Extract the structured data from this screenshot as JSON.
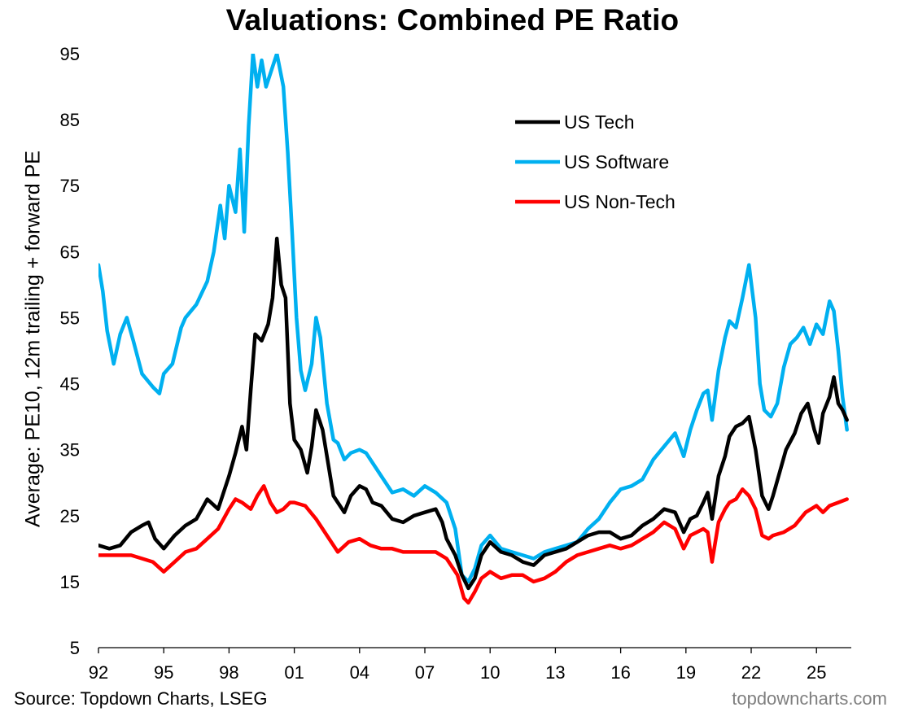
{
  "chart_data": {
    "type": "line",
    "title": "Valuations: Combined PE Ratio",
    "ylabel": "Average: PE10, 12m trailing + forward PE",
    "xlabel": "",
    "ylim": [
      5,
      95
    ],
    "xlim": [
      1992.0,
      2026.6
    ],
    "yticks": [
      95,
      85,
      75,
      65,
      55,
      45,
      35,
      25,
      15,
      5
    ],
    "xticks": [
      {
        "x": 1992,
        "label": "92"
      },
      {
        "x": 1995,
        "label": "95"
      },
      {
        "x": 1998,
        "label": "98"
      },
      {
        "x": 2001,
        "label": "01"
      },
      {
        "x": 2004,
        "label": "04"
      },
      {
        "x": 2007,
        "label": "07"
      },
      {
        "x": 2010,
        "label": "10"
      },
      {
        "x": 2013,
        "label": "13"
      },
      {
        "x": 2016,
        "label": "16"
      },
      {
        "x": 2019,
        "label": "19"
      },
      {
        "x": 2022,
        "label": "22"
      },
      {
        "x": 2025,
        "label": "25"
      }
    ],
    "legend_position": "top-right",
    "series": [
      {
        "name": "US Tech",
        "color": "#000000",
        "points": [
          [
            1992.0,
            20.5
          ],
          [
            1992.5,
            20.0
          ],
          [
            1993.0,
            20.5
          ],
          [
            1993.5,
            22.5
          ],
          [
            1994.0,
            23.5
          ],
          [
            1994.3,
            24.0
          ],
          [
            1994.6,
            21.5
          ],
          [
            1995.0,
            20.0
          ],
          [
            1995.5,
            22.0
          ],
          [
            1996.0,
            23.5
          ],
          [
            1996.5,
            24.5
          ],
          [
            1997.0,
            27.5
          ],
          [
            1997.5,
            26.0
          ],
          [
            1998.0,
            31.0
          ],
          [
            1998.3,
            34.5
          ],
          [
            1998.6,
            38.5
          ],
          [
            1998.8,
            35.0
          ],
          [
            1999.0,
            44.0
          ],
          [
            1999.2,
            52.5
          ],
          [
            1999.5,
            51.5
          ],
          [
            1999.8,
            54.0
          ],
          [
            2000.0,
            58.0
          ],
          [
            2000.2,
            67.0
          ],
          [
            2000.4,
            60.0
          ],
          [
            2000.6,
            58.0
          ],
          [
            2000.8,
            42.0
          ],
          [
            2001.0,
            36.5
          ],
          [
            2001.3,
            35.0
          ],
          [
            2001.6,
            31.5
          ],
          [
            2001.8,
            35.5
          ],
          [
            2002.0,
            41.0
          ],
          [
            2002.3,
            38.0
          ],
          [
            2002.6,
            32.0
          ],
          [
            2002.8,
            28.0
          ],
          [
            2003.0,
            27.0
          ],
          [
            2003.3,
            25.5
          ],
          [
            2003.6,
            28.0
          ],
          [
            2004.0,
            29.5
          ],
          [
            2004.3,
            29.0
          ],
          [
            2004.6,
            27.0
          ],
          [
            2005.0,
            26.5
          ],
          [
            2005.5,
            24.5
          ],
          [
            2006.0,
            24.0
          ],
          [
            2006.5,
            25.0
          ],
          [
            2007.0,
            25.5
          ],
          [
            2007.5,
            26.0
          ],
          [
            2007.8,
            24.0
          ],
          [
            2008.0,
            21.5
          ],
          [
            2008.4,
            19.0
          ],
          [
            2008.7,
            16.0
          ],
          [
            2009.0,
            14.0
          ],
          [
            2009.3,
            15.5
          ],
          [
            2009.6,
            19.0
          ],
          [
            2010.0,
            21.0
          ],
          [
            2010.5,
            19.5
          ],
          [
            2011.0,
            19.0
          ],
          [
            2011.5,
            18.0
          ],
          [
            2012.0,
            17.5
          ],
          [
            2012.5,
            19.0
          ],
          [
            2013.0,
            19.5
          ],
          [
            2013.5,
            20.0
          ],
          [
            2014.0,
            21.0
          ],
          [
            2014.5,
            22.0
          ],
          [
            2015.0,
            22.5
          ],
          [
            2015.5,
            22.5
          ],
          [
            2016.0,
            21.5
          ],
          [
            2016.5,
            22.0
          ],
          [
            2017.0,
            23.5
          ],
          [
            2017.5,
            24.5
          ],
          [
            2018.0,
            26.0
          ],
          [
            2018.5,
            25.5
          ],
          [
            2018.9,
            22.5
          ],
          [
            2019.2,
            24.5
          ],
          [
            2019.5,
            25.0
          ],
          [
            2019.8,
            27.0
          ],
          [
            2020.0,
            28.5
          ],
          [
            2020.2,
            24.5
          ],
          [
            2020.5,
            31.0
          ],
          [
            2020.8,
            34.0
          ],
          [
            2021.0,
            37.0
          ],
          [
            2021.3,
            38.5
          ],
          [
            2021.6,
            39.0
          ],
          [
            2021.9,
            40.0
          ],
          [
            2022.2,
            35.0
          ],
          [
            2022.5,
            28.0
          ],
          [
            2022.8,
            26.0
          ],
          [
            2023.0,
            28.0
          ],
          [
            2023.3,
            31.5
          ],
          [
            2023.6,
            35.0
          ],
          [
            2024.0,
            37.5
          ],
          [
            2024.3,
            40.5
          ],
          [
            2024.6,
            42.0
          ],
          [
            2024.9,
            38.0
          ],
          [
            2025.1,
            36.0
          ],
          [
            2025.3,
            40.5
          ],
          [
            2025.6,
            43.0
          ],
          [
            2025.8,
            46.0
          ],
          [
            2026.0,
            42.0
          ],
          [
            2026.2,
            41.0
          ],
          [
            2026.4,
            39.5
          ]
        ]
      },
      {
        "name": "US Software",
        "color": "#00b0f0",
        "points": [
          [
            1992.0,
            63.0
          ],
          [
            1992.2,
            59.0
          ],
          [
            1992.4,
            53.0
          ],
          [
            1992.7,
            48.0
          ],
          [
            1993.0,
            52.5
          ],
          [
            1993.3,
            55.0
          ],
          [
            1993.6,
            51.5
          ],
          [
            1994.0,
            46.5
          ],
          [
            1994.5,
            44.5
          ],
          [
            1994.8,
            43.5
          ],
          [
            1995.0,
            46.5
          ],
          [
            1995.4,
            48.0
          ],
          [
            1995.8,
            53.5
          ],
          [
            1996.0,
            55.0
          ],
          [
            1996.5,
            57.0
          ],
          [
            1997.0,
            60.5
          ],
          [
            1997.3,
            65.0
          ],
          [
            1997.6,
            72.0
          ],
          [
            1997.8,
            67.0
          ],
          [
            1998.0,
            75.0
          ],
          [
            1998.3,
            71.0
          ],
          [
            1998.5,
            80.5
          ],
          [
            1998.7,
            68.0
          ],
          [
            1998.9,
            84.0
          ],
          [
            1999.1,
            95.0
          ],
          [
            1999.3,
            90.0
          ],
          [
            1999.5,
            94.0
          ],
          [
            1999.7,
            90.0
          ],
          [
            2000.0,
            93.0
          ],
          [
            2000.2,
            95.0
          ],
          [
            2000.5,
            90.0
          ],
          [
            2000.7,
            80.0
          ],
          [
            2000.9,
            68.0
          ],
          [
            2001.1,
            55.0
          ],
          [
            2001.3,
            47.0
          ],
          [
            2001.5,
            44.0
          ],
          [
            2001.8,
            48.0
          ],
          [
            2002.0,
            55.0
          ],
          [
            2002.2,
            52.0
          ],
          [
            2002.5,
            42.0
          ],
          [
            2002.8,
            36.5
          ],
          [
            2003.0,
            36.0
          ],
          [
            2003.3,
            33.5
          ],
          [
            2003.6,
            34.5
          ],
          [
            2004.0,
            35.0
          ],
          [
            2004.3,
            34.5
          ],
          [
            2004.6,
            33.0
          ],
          [
            2005.0,
            31.0
          ],
          [
            2005.5,
            28.5
          ],
          [
            2006.0,
            29.0
          ],
          [
            2006.5,
            28.0
          ],
          [
            2007.0,
            29.5
          ],
          [
            2007.5,
            28.5
          ],
          [
            2008.0,
            27.0
          ],
          [
            2008.4,
            23.0
          ],
          [
            2008.7,
            16.0
          ],
          [
            2009.0,
            15.0
          ],
          [
            2009.3,
            17.0
          ],
          [
            2009.6,
            20.5
          ],
          [
            2010.0,
            22.0
          ],
          [
            2010.5,
            20.0
          ],
          [
            2011.0,
            19.5
          ],
          [
            2011.5,
            19.0
          ],
          [
            2012.0,
            18.5
          ],
          [
            2012.5,
            19.5
          ],
          [
            2013.0,
            20.0
          ],
          [
            2013.5,
            20.5
          ],
          [
            2014.0,
            21.0
          ],
          [
            2014.5,
            23.0
          ],
          [
            2015.0,
            24.5
          ],
          [
            2015.5,
            27.0
          ],
          [
            2016.0,
            29.0
          ],
          [
            2016.5,
            29.5
          ],
          [
            2017.0,
            30.5
          ],
          [
            2017.5,
            33.5
          ],
          [
            2018.0,
            35.5
          ],
          [
            2018.5,
            37.5
          ],
          [
            2018.9,
            34.0
          ],
          [
            2019.2,
            38.0
          ],
          [
            2019.5,
            41.0
          ],
          [
            2019.8,
            43.5
          ],
          [
            2020.0,
            44.0
          ],
          [
            2020.2,
            39.5
          ],
          [
            2020.5,
            47.0
          ],
          [
            2020.8,
            52.0
          ],
          [
            2021.0,
            54.5
          ],
          [
            2021.3,
            53.5
          ],
          [
            2021.6,
            58.0
          ],
          [
            2021.9,
            63.0
          ],
          [
            2022.2,
            55.0
          ],
          [
            2022.4,
            45.0
          ],
          [
            2022.6,
            41.0
          ],
          [
            2022.9,
            40.0
          ],
          [
            2023.2,
            42.0
          ],
          [
            2023.5,
            47.5
          ],
          [
            2023.8,
            51.0
          ],
          [
            2024.1,
            52.0
          ],
          [
            2024.4,
            53.5
          ],
          [
            2024.7,
            51.0
          ],
          [
            2025.0,
            54.0
          ],
          [
            2025.3,
            52.5
          ],
          [
            2025.6,
            57.5
          ],
          [
            2025.8,
            56.0
          ],
          [
            2026.0,
            50.0
          ],
          [
            2026.2,
            43.0
          ],
          [
            2026.4,
            38.0
          ]
        ]
      },
      {
        "name": "US Non-Tech",
        "color": "#ff0000",
        "points": [
          [
            1992.0,
            19.0
          ],
          [
            1992.5,
            19.0
          ],
          [
            1993.0,
            19.0
          ],
          [
            1993.5,
            19.0
          ],
          [
            1994.0,
            18.5
          ],
          [
            1994.5,
            18.0
          ],
          [
            1995.0,
            16.5
          ],
          [
            1995.5,
            18.0
          ],
          [
            1996.0,
            19.5
          ],
          [
            1996.5,
            20.0
          ],
          [
            1997.0,
            21.5
          ],
          [
            1997.5,
            23.0
          ],
          [
            1998.0,
            26.0
          ],
          [
            1998.3,
            27.5
          ],
          [
            1998.6,
            27.0
          ],
          [
            1999.0,
            26.0
          ],
          [
            1999.3,
            28.0
          ],
          [
            1999.6,
            29.5
          ],
          [
            1999.9,
            27.0
          ],
          [
            2000.2,
            25.5
          ],
          [
            2000.5,
            26.0
          ],
          [
            2000.8,
            27.0
          ],
          [
            2001.0,
            27.0
          ],
          [
            2001.5,
            26.5
          ],
          [
            2002.0,
            24.5
          ],
          [
            2002.5,
            22.0
          ],
          [
            2003.0,
            19.5
          ],
          [
            2003.5,
            21.0
          ],
          [
            2004.0,
            21.5
          ],
          [
            2004.5,
            20.5
          ],
          [
            2005.0,
            20.0
          ],
          [
            2005.5,
            20.0
          ],
          [
            2006.0,
            19.5
          ],
          [
            2006.5,
            19.5
          ],
          [
            2007.0,
            19.5
          ],
          [
            2007.5,
            19.5
          ],
          [
            2008.0,
            18.5
          ],
          [
            2008.5,
            16.0
          ],
          [
            2008.8,
            12.5
          ],
          [
            2009.0,
            11.8
          ],
          [
            2009.3,
            13.5
          ],
          [
            2009.6,
            15.5
          ],
          [
            2010.0,
            16.5
          ],
          [
            2010.5,
            15.5
          ],
          [
            2011.0,
            16.0
          ],
          [
            2011.5,
            16.0
          ],
          [
            2012.0,
            15.0
          ],
          [
            2012.5,
            15.5
          ],
          [
            2013.0,
            16.5
          ],
          [
            2013.5,
            18.0
          ],
          [
            2014.0,
            19.0
          ],
          [
            2014.5,
            19.5
          ],
          [
            2015.0,
            20.0
          ],
          [
            2015.5,
            20.5
          ],
          [
            2016.0,
            20.0
          ],
          [
            2016.5,
            20.5
          ],
          [
            2017.0,
            21.5
          ],
          [
            2017.5,
            22.5
          ],
          [
            2018.0,
            24.0
          ],
          [
            2018.5,
            23.0
          ],
          [
            2018.9,
            20.0
          ],
          [
            2019.2,
            22.0
          ],
          [
            2019.5,
            22.5
          ],
          [
            2019.8,
            23.0
          ],
          [
            2020.0,
            22.5
          ],
          [
            2020.2,
            18.0
          ],
          [
            2020.5,
            24.0
          ],
          [
            2020.8,
            26.0
          ],
          [
            2021.0,
            27.0
          ],
          [
            2021.3,
            27.5
          ],
          [
            2021.6,
            29.0
          ],
          [
            2021.9,
            28.0
          ],
          [
            2022.2,
            26.0
          ],
          [
            2022.5,
            22.0
          ],
          [
            2022.8,
            21.5
          ],
          [
            2023.0,
            22.0
          ],
          [
            2023.5,
            22.5
          ],
          [
            2024.0,
            23.5
          ],
          [
            2024.5,
            25.5
          ],
          [
            2025.0,
            26.5
          ],
          [
            2025.3,
            25.5
          ],
          [
            2025.6,
            26.5
          ],
          [
            2026.0,
            27.0
          ],
          [
            2026.4,
            27.5
          ]
        ]
      }
    ]
  },
  "source_note": "Source: Topdown Charts, LSEG",
  "watermark": "topdowncharts.com"
}
